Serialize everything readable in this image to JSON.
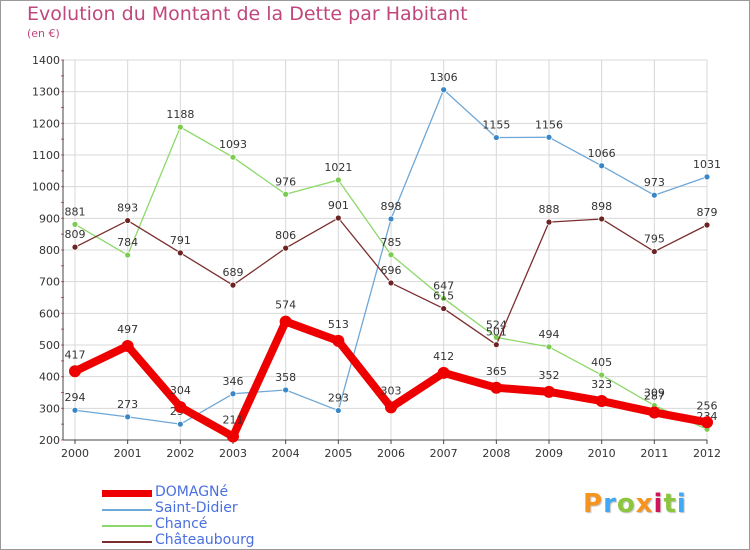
{
  "header": {
    "title": "Evolution du Montant de la Dette par Habitant",
    "subtitle": "(en €)"
  },
  "logo": {
    "text": "Proxiti",
    "colors": [
      "#f7941d",
      "#3fa9f5",
      "#8cc63f",
      "#f7941d",
      "#d4145a",
      "#8cc63f",
      "#3fa9f5"
    ]
  },
  "colors": {
    "title": "#c0477e",
    "grid": "#d8d8d8",
    "axis": "#444444",
    "tick_mark": "#e05a8a"
  },
  "chart_data": {
    "type": "line",
    "title": "Evolution du Montant de la Dette par Habitant",
    "subtitle": "(en €)",
    "x": [
      "2000",
      "2001",
      "2002",
      "2003",
      "2004",
      "2005",
      "2006",
      "2007",
      "2008",
      "2009",
      "2010",
      "2011",
      "2012"
    ],
    "ylim": [
      200,
      1400
    ],
    "yticks": [
      200,
      300,
      400,
      500,
      600,
      700,
      800,
      900,
      1000,
      1100,
      1200,
      1300,
      1400
    ],
    "grid": true,
    "legend_position": "bottom-left",
    "series": [
      {
        "name": "Saint-Didier",
        "color": "#6fa7d6",
        "marker": "#3a87c8",
        "values": [
          294,
          273,
          250,
          346,
          358,
          293,
          898,
          1306,
          1155,
          1156,
          1066,
          973,
          1031
        ],
        "labels": [
          "294",
          "273",
          "250",
          "346",
          "358",
          "293",
          "898",
          "1306",
          "1155",
          "1156",
          "1066",
          "973",
          "1031"
        ]
      },
      {
        "name": "Chancé",
        "color": "#8cd86a",
        "marker": "#7ccc52",
        "values": [
          881,
          784,
          1188,
          1093,
          976,
          1021,
          785,
          647,
          524,
          494,
          405,
          309,
          234
        ],
        "labels": [
          "881",
          "784",
          "1188",
          "1093",
          "976",
          "1021",
          "785",
          "647",
          "524",
          "494",
          "405",
          "309",
          "234"
        ]
      },
      {
        "name": "Châteaubourg",
        "color": "#7a2e2e",
        "marker": "#6b2323",
        "values": [
          809,
          893,
          791,
          689,
          806,
          901,
          696,
          615,
          501,
          888,
          898,
          795,
          879
        ],
        "labels": [
          "809",
          "893",
          "791",
          "689",
          "806",
          "901",
          "696",
          "615",
          "501",
          "888",
          "898",
          "795",
          "879"
        ]
      },
      {
        "name": "DOMAGNé",
        "color": "#ee0000",
        "marker": "#ee0000",
        "values": [
          417,
          497,
          304,
          211,
          574,
          513,
          303,
          412,
          365,
          352,
          323,
          287,
          256
        ],
        "labels": [
          "417",
          "497",
          "304",
          "211",
          "574",
          "513",
          "303",
          "412",
          "365",
          "352",
          "323",
          "287",
          "256"
        ]
      }
    ],
    "legend": [
      {
        "name": "DOMAGNé",
        "color": "#ee0000",
        "text_color": "#4a6fe0"
      },
      {
        "name": "Saint-Didier",
        "color": "#6fa7d6",
        "text_color": "#4a6fe0"
      },
      {
        "name": "Chancé",
        "color": "#8cd86a",
        "text_color": "#4a6fe0"
      },
      {
        "name": "Châteaubourg",
        "color": "#7a2e2e",
        "text_color": "#4a6fe0"
      }
    ]
  }
}
